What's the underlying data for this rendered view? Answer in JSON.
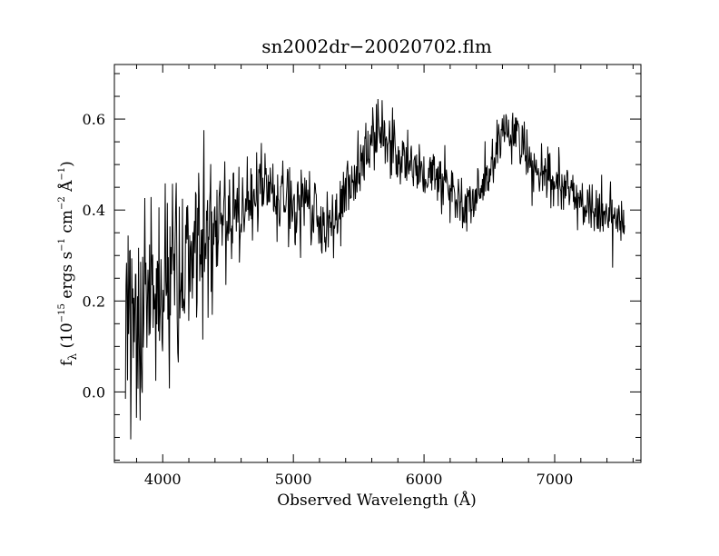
{
  "chart_data": {
    "type": "line",
    "title": "sn2002dr−20020702.flm",
    "xlabel": "Observed Wavelength (Å)",
    "ylabel": {
      "f": "f",
      "lambda": "λ",
      "open": " (10",
      "exp15": "−15",
      "ergs": " ergs s",
      "exp1": "−1",
      "cm": " cm",
      "exp2": "−2",
      "ang": " Å",
      "exp1b": "−1",
      "close": ")"
    },
    "xlim": [
      3630,
      7660
    ],
    "ylim": [
      -0.155,
      0.72
    ],
    "x_ticks": [
      4000,
      5000,
      6000,
      7000
    ],
    "x_tick_labels": [
      "4000",
      "5000",
      "6000",
      "7000"
    ],
    "x_minor_step": 200,
    "y_ticks": [
      0.0,
      0.2,
      0.4,
      0.6
    ],
    "y_tick_labels": [
      "0.0",
      "0.2",
      "0.4",
      "0.6"
    ],
    "y_minor_step": 0.05,
    "grid": false,
    "legend": "none",
    "color": "#000000",
    "series": [
      {
        "x_start": 3715,
        "x_end": 7535,
        "x_step": 4,
        "continuum": {
          "x": [
            3715,
            3800,
            3900,
            4000,
            4100,
            4200,
            4300,
            4400,
            4500,
            4600,
            4700,
            4800,
            4900,
            5000,
            5100,
            5200,
            5300,
            5400,
            5500,
            5600,
            5650,
            5700,
            5800,
            5900,
            6000,
            6100,
            6200,
            6250,
            6300,
            6400,
            6500,
            6600,
            6650,
            6700,
            6800,
            6900,
            7000,
            7100,
            7200,
            7300,
            7400,
            7535
          ],
          "y": [
            0.12,
            0.17,
            0.22,
            0.25,
            0.27,
            0.29,
            0.31,
            0.33,
            0.37,
            0.4,
            0.43,
            0.45,
            0.44,
            0.43,
            0.41,
            0.37,
            0.34,
            0.44,
            0.49,
            0.55,
            0.59,
            0.57,
            0.52,
            0.5,
            0.48,
            0.47,
            0.45,
            0.43,
            0.4,
            0.42,
            0.48,
            0.56,
            0.59,
            0.57,
            0.5,
            0.47,
            0.46,
            0.44,
            0.42,
            0.4,
            0.38,
            0.39
          ]
        },
        "noise": {
          "x": [
            3715,
            3800,
            3900,
            4000,
            4200,
            4400,
            4600,
            4800,
            5000,
            5400,
            5600,
            6000,
            6400,
            7000,
            7535
          ],
          "amplitude": [
            0.14,
            0.13,
            0.12,
            0.11,
            0.09,
            0.08,
            0.06,
            0.05,
            0.045,
            0.04,
            0.04,
            0.035,
            0.035,
            0.03,
            0.03
          ]
        }
      }
    ]
  }
}
